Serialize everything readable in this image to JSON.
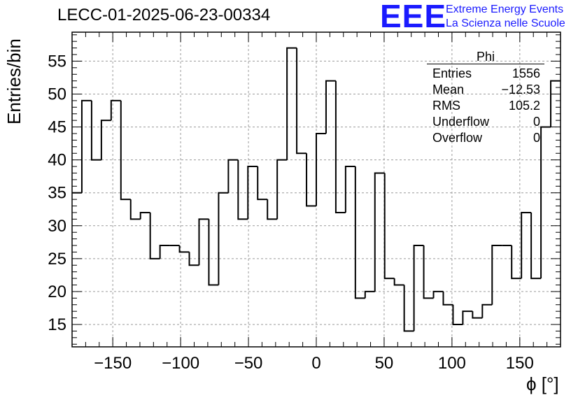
{
  "header": {
    "title": "LECC-01-2025-06-23-00334",
    "logo_text": "EEE",
    "logo_line1": "Extreme Energy Events",
    "logo_line2": "La Scienza nelle Scuole"
  },
  "stats": {
    "name": "Phi",
    "rows": [
      {
        "label": "Entries",
        "value": "1556"
      },
      {
        "label": "Mean",
        "value": "−12.53"
      },
      {
        "label": "RMS",
        "value": "105.2"
      },
      {
        "label": "Underflow",
        "value": "0"
      },
      {
        "label": "Overflow",
        "value": "0"
      }
    ]
  },
  "chart_data": {
    "type": "bar",
    "style": "step-histogram",
    "title": "LECC-01-2025-06-23-00334",
    "xlabel": "ϕ [°]",
    "ylabel": "Entries/bin",
    "xlim": [
      -180,
      180
    ],
    "ylim": [
      11.6,
      59.4
    ],
    "bin_edges_start": -180,
    "bin_width": 7.2,
    "values": [
      35,
      49,
      40,
      46,
      49,
      34,
      31,
      32,
      25,
      27,
      27,
      26,
      24,
      31,
      21,
      35,
      40,
      31,
      39,
      34,
      31,
      40,
      57,
      41,
      33,
      44,
      52,
      32,
      39,
      19,
      20,
      38,
      22,
      21,
      14,
      27,
      19,
      20,
      18,
      15,
      17,
      16,
      18,
      27,
      27,
      22,
      32,
      22,
      45,
      52
    ],
    "xticks": [
      -150,
      -100,
      -50,
      0,
      50,
      100,
      150
    ],
    "xtick_labels": [
      "−150",
      "−100",
      "−50",
      "0",
      "50",
      "100",
      "150"
    ],
    "yticks": [
      15,
      20,
      25,
      30,
      35,
      40,
      45,
      50,
      55
    ],
    "ytick_labels": [
      "15",
      "20",
      "25",
      "30",
      "35",
      "40",
      "45",
      "50",
      "55"
    ],
    "grid": true,
    "colors": {
      "line": "#000000",
      "grid": "#9a9a9a",
      "logo": "#1a1aff"
    }
  }
}
